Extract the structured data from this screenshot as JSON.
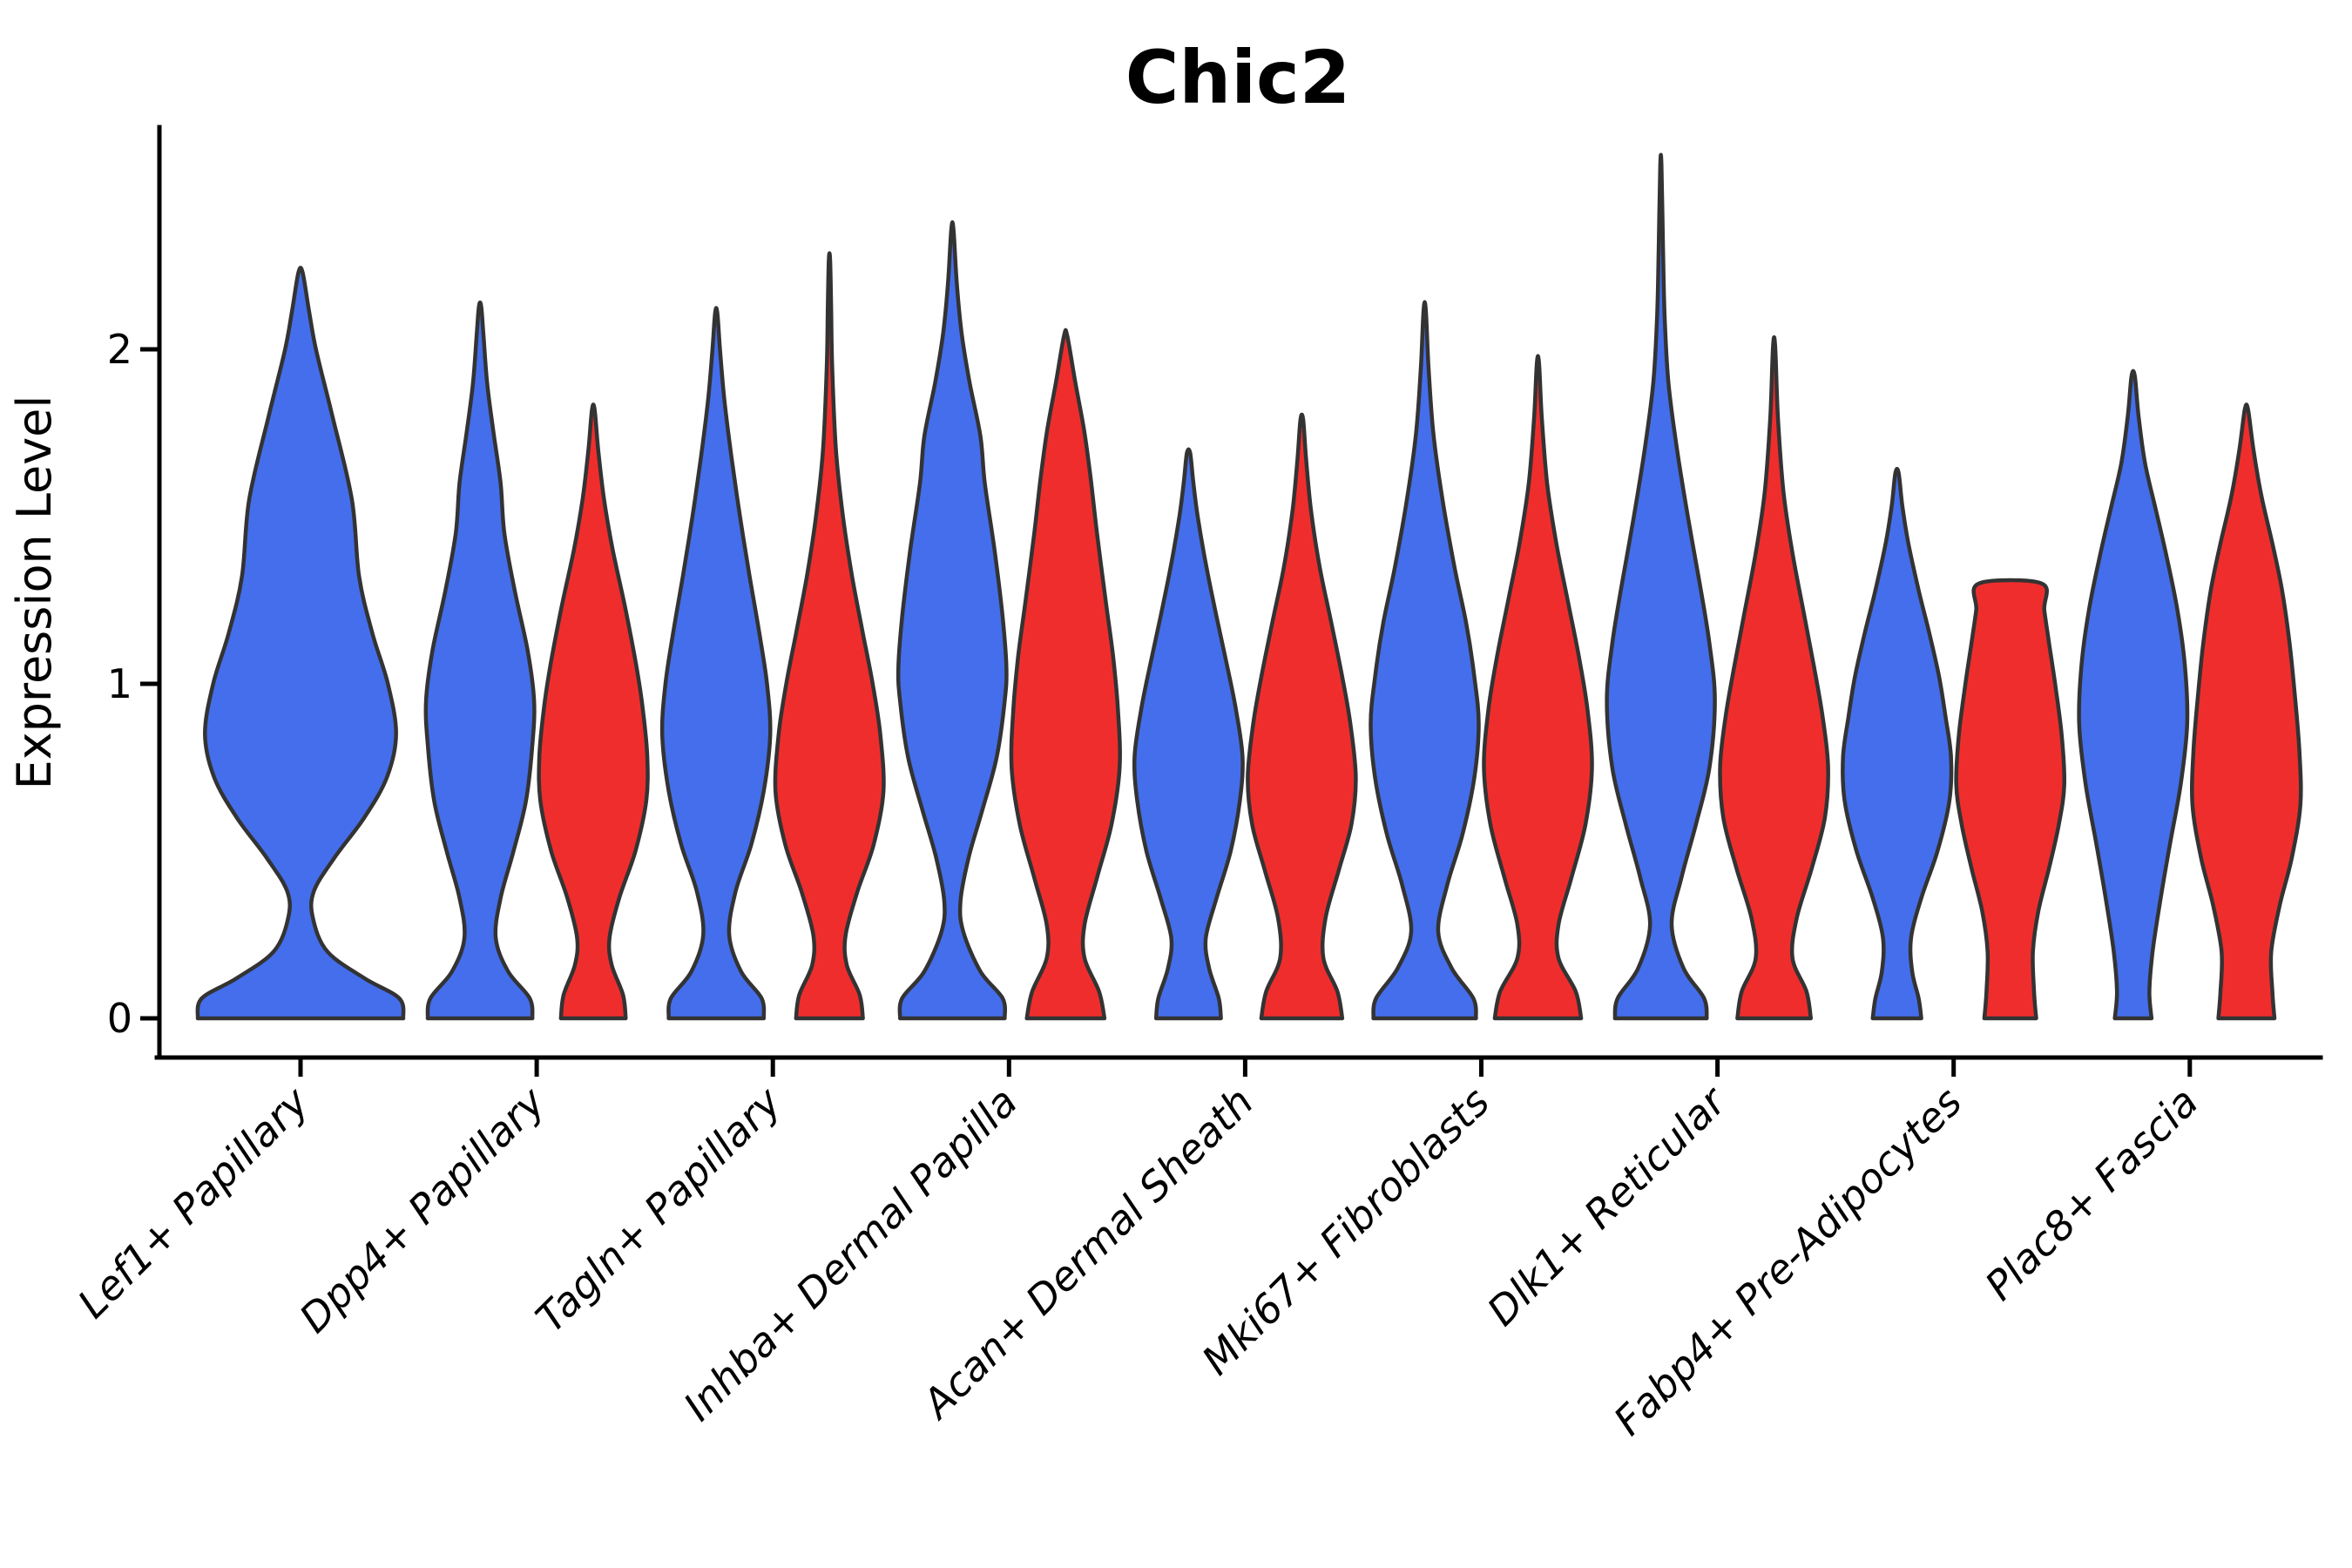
{
  "title": "Chic2",
  "y_axis": {
    "label": "Expression Level",
    "ticks": [
      {
        "value": 0,
        "label": "0"
      },
      {
        "value": 1,
        "label": "1"
      },
      {
        "value": 2,
        "label": "2"
      }
    ]
  },
  "colors": {
    "blue": "#446EEB",
    "red": "#F02D2D",
    "outline": "#333333",
    "axis": "#000000"
  },
  "chart_data": {
    "type": "violin",
    "title": "Chic2",
    "xlabel": "",
    "ylabel": "Expression Level",
    "ylim": [
      -0.12,
      2.66
    ],
    "y_ticks": [
      0,
      1,
      2
    ],
    "grid": false,
    "legend": "none",
    "categories": [
      "Lef1+ Papillary",
      "Dpp4+ Papillary",
      "Tagln+ Papillary",
      "Inhba+ Dermal Papilla",
      "Acan+ Dermal Sheath",
      "Mki67+ Fibroblasts",
      "Dlk1+ Reticular",
      "Fabp4+ Pre-Adipocytes",
      "Plac8+ Fascia"
    ],
    "series": [
      {
        "name": "blue",
        "color_key": "blue"
      },
      {
        "name": "red",
        "color_key": "red"
      }
    ],
    "violins": [
      {
        "category_index": 0,
        "color_key": "blue",
        "position": "center",
        "wide": true,
        "peak": 2.23,
        "capped": false,
        "profile": [
          [
            0.0,
            1.0
          ],
          [
            0.06,
            0.96
          ],
          [
            0.12,
            0.62
          ],
          [
            0.2,
            0.26
          ],
          [
            0.3,
            0.12
          ],
          [
            0.38,
            0.13
          ],
          [
            0.48,
            0.33
          ],
          [
            0.6,
            0.62
          ],
          [
            0.72,
            0.84
          ],
          [
            0.85,
            0.93
          ],
          [
            1.0,
            0.85
          ],
          [
            1.15,
            0.7
          ],
          [
            1.32,
            0.57
          ],
          [
            1.55,
            0.5
          ],
          [
            1.8,
            0.31
          ],
          [
            2.0,
            0.15
          ],
          [
            2.12,
            0.08
          ],
          [
            2.23,
            0.02
          ]
        ]
      },
      {
        "category_index": 1,
        "color_key": "blue",
        "position": "left",
        "wide": false,
        "peak": 2.13,
        "capped": false,
        "profile": [
          [
            0.0,
            0.97
          ],
          [
            0.06,
            0.92
          ],
          [
            0.14,
            0.52
          ],
          [
            0.24,
            0.29
          ],
          [
            0.36,
            0.38
          ],
          [
            0.5,
            0.62
          ],
          [
            0.65,
            0.85
          ],
          [
            0.82,
            0.97
          ],
          [
            0.95,
            1.0
          ],
          [
            1.1,
            0.88
          ],
          [
            1.28,
            0.64
          ],
          [
            1.45,
            0.45
          ],
          [
            1.6,
            0.38
          ],
          [
            1.75,
            0.25
          ],
          [
            1.9,
            0.13
          ],
          [
            2.05,
            0.06
          ],
          [
            2.13,
            0.02
          ]
        ]
      },
      {
        "category_index": 1,
        "color_key": "red",
        "position": "right",
        "wide": false,
        "peak": 1.82,
        "capped": false,
        "profile": [
          [
            0.0,
            0.6
          ],
          [
            0.07,
            0.55
          ],
          [
            0.16,
            0.34
          ],
          [
            0.24,
            0.3
          ],
          [
            0.36,
            0.48
          ],
          [
            0.5,
            0.78
          ],
          [
            0.65,
            0.98
          ],
          [
            0.78,
            1.0
          ],
          [
            0.92,
            0.92
          ],
          [
            1.05,
            0.8
          ],
          [
            1.22,
            0.6
          ],
          [
            1.4,
            0.36
          ],
          [
            1.55,
            0.2
          ],
          [
            1.7,
            0.09
          ],
          [
            1.82,
            0.025
          ]
        ]
      },
      {
        "category_index": 2,
        "color_key": "blue",
        "position": "left",
        "wide": false,
        "peak": 2.11,
        "capped": false,
        "profile": [
          [
            0.0,
            0.88
          ],
          [
            0.06,
            0.84
          ],
          [
            0.14,
            0.46
          ],
          [
            0.25,
            0.24
          ],
          [
            0.38,
            0.36
          ],
          [
            0.52,
            0.65
          ],
          [
            0.68,
            0.88
          ],
          [
            0.85,
            1.0
          ],
          [
            1.0,
            0.94
          ],
          [
            1.15,
            0.8
          ],
          [
            1.32,
            0.62
          ],
          [
            1.5,
            0.44
          ],
          [
            1.68,
            0.28
          ],
          [
            1.85,
            0.15
          ],
          [
            2.0,
            0.07
          ],
          [
            2.11,
            0.02
          ]
        ]
      },
      {
        "category_index": 2,
        "color_key": "red",
        "position": "right",
        "wide": false,
        "peak": 2.27,
        "capped": false,
        "profile": [
          [
            0.0,
            0.62
          ],
          [
            0.07,
            0.56
          ],
          [
            0.16,
            0.32
          ],
          [
            0.25,
            0.3
          ],
          [
            0.38,
            0.52
          ],
          [
            0.52,
            0.82
          ],
          [
            0.68,
            1.0
          ],
          [
            0.85,
            0.94
          ],
          [
            1.0,
            0.8
          ],
          [
            1.15,
            0.62
          ],
          [
            1.32,
            0.42
          ],
          [
            1.5,
            0.25
          ],
          [
            1.7,
            0.12
          ],
          [
            1.95,
            0.05
          ],
          [
            2.13,
            0.03
          ],
          [
            2.27,
            0.012
          ]
        ]
      },
      {
        "category_index": 3,
        "color_key": "blue",
        "position": "left",
        "wide": false,
        "peak": 2.36,
        "capped": false,
        "profile": [
          [
            0.0,
            0.97
          ],
          [
            0.06,
            0.93
          ],
          [
            0.14,
            0.52
          ],
          [
            0.26,
            0.2
          ],
          [
            0.35,
            0.15
          ],
          [
            0.48,
            0.3
          ],
          [
            0.62,
            0.55
          ],
          [
            0.78,
            0.82
          ],
          [
            0.95,
            0.97
          ],
          [
            1.05,
            1.0
          ],
          [
            1.2,
            0.93
          ],
          [
            1.4,
            0.78
          ],
          [
            1.6,
            0.6
          ],
          [
            1.74,
            0.52
          ],
          [
            1.9,
            0.32
          ],
          [
            2.05,
            0.17
          ],
          [
            2.2,
            0.08
          ],
          [
            2.36,
            0.02
          ]
        ]
      },
      {
        "category_index": 3,
        "color_key": "red",
        "position": "right",
        "wide": false,
        "peak": 2.04,
        "capped": false,
        "profile": [
          [
            0.0,
            0.72
          ],
          [
            0.08,
            0.62
          ],
          [
            0.18,
            0.35
          ],
          [
            0.28,
            0.35
          ],
          [
            0.42,
            0.58
          ],
          [
            0.58,
            0.85
          ],
          [
            0.75,
            1.0
          ],
          [
            0.92,
            0.97
          ],
          [
            1.08,
            0.88
          ],
          [
            1.25,
            0.74
          ],
          [
            1.45,
            0.58
          ],
          [
            1.62,
            0.46
          ],
          [
            1.76,
            0.34
          ],
          [
            1.9,
            0.18
          ],
          [
            2.04,
            0.03
          ]
        ]
      },
      {
        "category_index": 4,
        "color_key": "blue",
        "position": "left",
        "wide": false,
        "peak": 1.69,
        "capped": false,
        "profile": [
          [
            0.0,
            0.6
          ],
          [
            0.06,
            0.56
          ],
          [
            0.15,
            0.38
          ],
          [
            0.24,
            0.32
          ],
          [
            0.36,
            0.52
          ],
          [
            0.5,
            0.78
          ],
          [
            0.65,
            0.95
          ],
          [
            0.78,
            1.0
          ],
          [
            0.92,
            0.88
          ],
          [
            1.05,
            0.72
          ],
          [
            1.2,
            0.52
          ],
          [
            1.35,
            0.33
          ],
          [
            1.5,
            0.17
          ],
          [
            1.6,
            0.09
          ],
          [
            1.69,
            0.03
          ]
        ]
      },
      {
        "category_index": 4,
        "color_key": "red",
        "position": "right",
        "wide": false,
        "peak": 1.79,
        "capped": false,
        "profile": [
          [
            0.0,
            0.75
          ],
          [
            0.08,
            0.66
          ],
          [
            0.18,
            0.4
          ],
          [
            0.3,
            0.44
          ],
          [
            0.44,
            0.68
          ],
          [
            0.58,
            0.92
          ],
          [
            0.72,
            1.0
          ],
          [
            0.88,
            0.9
          ],
          [
            1.02,
            0.75
          ],
          [
            1.18,
            0.55
          ],
          [
            1.35,
            0.33
          ],
          [
            1.52,
            0.17
          ],
          [
            1.67,
            0.08
          ],
          [
            1.79,
            0.025
          ]
        ]
      },
      {
        "category_index": 5,
        "color_key": "blue",
        "position": "left",
        "wide": false,
        "peak": 2.12,
        "capped": false,
        "profile": [
          [
            0.0,
            0.95
          ],
          [
            0.06,
            0.9
          ],
          [
            0.15,
            0.5
          ],
          [
            0.26,
            0.25
          ],
          [
            0.4,
            0.42
          ],
          [
            0.55,
            0.7
          ],
          [
            0.72,
            0.92
          ],
          [
            0.88,
            1.0
          ],
          [
            1.02,
            0.92
          ],
          [
            1.18,
            0.77
          ],
          [
            1.35,
            0.55
          ],
          [
            1.55,
            0.33
          ],
          [
            1.75,
            0.16
          ],
          [
            1.95,
            0.07
          ],
          [
            2.12,
            0.02
          ]
        ]
      },
      {
        "category_index": 5,
        "color_key": "red",
        "position": "right",
        "wide": false,
        "peak": 1.96,
        "capped": false,
        "profile": [
          [
            0.0,
            0.8
          ],
          [
            0.08,
            0.7
          ],
          [
            0.18,
            0.38
          ],
          [
            0.28,
            0.38
          ],
          [
            0.42,
            0.62
          ],
          [
            0.58,
            0.88
          ],
          [
            0.75,
            1.0
          ],
          [
            0.92,
            0.92
          ],
          [
            1.08,
            0.76
          ],
          [
            1.25,
            0.55
          ],
          [
            1.42,
            0.34
          ],
          [
            1.6,
            0.17
          ],
          [
            1.8,
            0.07
          ],
          [
            1.96,
            0.02
          ]
        ]
      },
      {
        "category_index": 6,
        "color_key": "blue",
        "position": "left",
        "wide": false,
        "peak": 2.55,
        "capped": false,
        "profile": [
          [
            0.0,
            0.85
          ],
          [
            0.06,
            0.8
          ],
          [
            0.15,
            0.42
          ],
          [
            0.28,
            0.2
          ],
          [
            0.42,
            0.38
          ],
          [
            0.58,
            0.65
          ],
          [
            0.75,
            0.9
          ],
          [
            0.95,
            1.0
          ],
          [
            1.12,
            0.9
          ],
          [
            1.3,
            0.72
          ],
          [
            1.5,
            0.5
          ],
          [
            1.7,
            0.3
          ],
          [
            1.9,
            0.14
          ],
          [
            2.1,
            0.07
          ],
          [
            2.3,
            0.04
          ],
          [
            2.55,
            0.012
          ]
        ]
      },
      {
        "category_index": 6,
        "color_key": "red",
        "position": "right",
        "wide": false,
        "peak": 2.01,
        "capped": false,
        "profile": [
          [
            0.0,
            0.68
          ],
          [
            0.08,
            0.6
          ],
          [
            0.18,
            0.34
          ],
          [
            0.3,
            0.42
          ],
          [
            0.45,
            0.7
          ],
          [
            0.6,
            0.94
          ],
          [
            0.75,
            1.0
          ],
          [
            0.9,
            0.9
          ],
          [
            1.05,
            0.74
          ],
          [
            1.22,
            0.54
          ],
          [
            1.4,
            0.33
          ],
          [
            1.58,
            0.17
          ],
          [
            1.8,
            0.07
          ],
          [
            2.01,
            0.02
          ]
        ]
      },
      {
        "category_index": 7,
        "color_key": "blue",
        "position": "left",
        "wide": false,
        "peak": 1.63,
        "capped": false,
        "profile": [
          [
            0.0,
            0.45
          ],
          [
            0.06,
            0.4
          ],
          [
            0.14,
            0.28
          ],
          [
            0.24,
            0.26
          ],
          [
            0.36,
            0.45
          ],
          [
            0.5,
            0.75
          ],
          [
            0.65,
            0.97
          ],
          [
            0.78,
            1.0
          ],
          [
            0.9,
            0.9
          ],
          [
            1.02,
            0.78
          ],
          [
            1.15,
            0.6
          ],
          [
            1.28,
            0.4
          ],
          [
            1.42,
            0.21
          ],
          [
            1.53,
            0.1
          ],
          [
            1.63,
            0.03
          ]
        ]
      },
      {
        "category_index": 7,
        "color_key": "red",
        "position": "right",
        "wide": false,
        "peak": 1.3,
        "capped": true,
        "profile": [
          [
            0.0,
            0.48
          ],
          [
            0.08,
            0.44
          ],
          [
            0.2,
            0.42
          ],
          [
            0.32,
            0.52
          ],
          [
            0.45,
            0.72
          ],
          [
            0.58,
            0.9
          ],
          [
            0.7,
            1.0
          ],
          [
            0.85,
            0.95
          ],
          [
            1.0,
            0.83
          ],
          [
            1.12,
            0.72
          ],
          [
            1.22,
            0.63
          ],
          [
            1.3,
            0.58
          ]
        ]
      },
      {
        "category_index": 8,
        "color_key": "blue",
        "position": "left",
        "wide": false,
        "peak": 1.92,
        "capped": false,
        "profile": [
          [
            0.0,
            0.34
          ],
          [
            0.08,
            0.3
          ],
          [
            0.2,
            0.36
          ],
          [
            0.35,
            0.5
          ],
          [
            0.52,
            0.68
          ],
          [
            0.7,
            0.88
          ],
          [
            0.88,
            1.0
          ],
          [
            1.05,
            0.96
          ],
          [
            1.22,
            0.82
          ],
          [
            1.38,
            0.62
          ],
          [
            1.52,
            0.42
          ],
          [
            1.66,
            0.22
          ],
          [
            1.8,
            0.1
          ],
          [
            1.92,
            0.03
          ]
        ]
      },
      {
        "category_index": 8,
        "color_key": "red",
        "position": "right",
        "wide": false,
        "peak": 1.82,
        "capped": false,
        "profile": [
          [
            0.0,
            0.52
          ],
          [
            0.08,
            0.48
          ],
          [
            0.2,
            0.46
          ],
          [
            0.34,
            0.62
          ],
          [
            0.48,
            0.84
          ],
          [
            0.64,
            1.0
          ],
          [
            0.8,
            0.98
          ],
          [
            0.96,
            0.9
          ],
          [
            1.12,
            0.8
          ],
          [
            1.28,
            0.66
          ],
          [
            1.42,
            0.48
          ],
          [
            1.56,
            0.28
          ],
          [
            1.7,
            0.13
          ],
          [
            1.82,
            0.03
          ]
        ]
      }
    ]
  }
}
